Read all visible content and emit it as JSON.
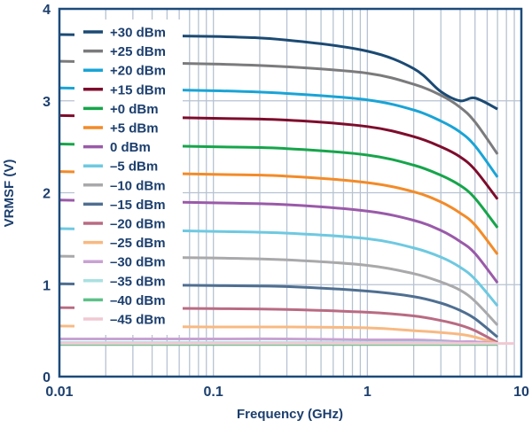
{
  "chart_data": {
    "type": "line",
    "title": "",
    "xlabel": "Frequency (GHz)",
    "ylabel": "VRMSF (V)",
    "xscale": "log",
    "xlim": [
      0.01,
      10
    ],
    "ylim": [
      0,
      4
    ],
    "xticks": [
      "0.01",
      "0.1",
      "1",
      "10"
    ],
    "yticks": [
      "0",
      "1",
      "2",
      "3",
      "4"
    ],
    "grid": true,
    "legend_position": "top-left",
    "x": [
      0.01,
      0.1,
      0.3,
      1,
      2,
      3,
      4,
      5,
      7
    ],
    "series": [
      {
        "name": "+30 dBm",
        "color": "#1b4a73",
        "values": [
          3.72,
          3.7,
          3.66,
          3.54,
          3.35,
          3.1,
          3.0,
          3.03,
          2.91
        ]
      },
      {
        "name": "+25 dBm",
        "color": "#7b7b7d",
        "values": [
          3.43,
          3.4,
          3.37,
          3.3,
          3.18,
          3.06,
          2.93,
          2.77,
          2.42
        ]
      },
      {
        "name": "+20 dBm",
        "color": "#19a4d6",
        "values": [
          3.14,
          3.11,
          3.08,
          3.01,
          2.9,
          2.78,
          2.66,
          2.51,
          2.17
        ]
      },
      {
        "name": "+15 dBm",
        "color": "#7e0c2c",
        "values": [
          2.84,
          2.81,
          2.79,
          2.72,
          2.61,
          2.5,
          2.39,
          2.25,
          1.93
        ]
      },
      {
        "name": "+0 dBm",
        "color": "#16a54b",
        "values": [
          2.53,
          2.5,
          2.48,
          2.41,
          2.3,
          2.19,
          2.08,
          1.94,
          1.62
        ]
      },
      {
        "name": "+5 dBm",
        "color": "#f38b28",
        "values": [
          2.23,
          2.2,
          2.18,
          2.11,
          2.01,
          1.9,
          1.78,
          1.65,
          1.33
        ]
      },
      {
        "name": "0 dBm",
        "color": "#9a5aa9",
        "values": [
          1.92,
          1.89,
          1.87,
          1.8,
          1.7,
          1.59,
          1.47,
          1.34,
          1.02
        ]
      },
      {
        "name": "–5 dBm",
        "color": "#6ec9e1",
        "values": [
          1.61,
          1.58,
          1.56,
          1.5,
          1.4,
          1.3,
          1.19,
          1.06,
          0.77
        ]
      },
      {
        "name": "–10 dBm",
        "color": "#a9a9ab",
        "values": [
          1.31,
          1.29,
          1.27,
          1.21,
          1.12,
          1.03,
          0.94,
          0.82,
          0.56
        ]
      },
      {
        "name": "–15 dBm",
        "color": "#4f6f91",
        "values": [
          1.01,
          0.99,
          0.98,
          0.93,
          0.87,
          0.8,
          0.72,
          0.63,
          0.43
        ]
      },
      {
        "name": "–20 dBm",
        "color": "#b96b83",
        "values": [
          0.75,
          0.74,
          0.73,
          0.7,
          0.66,
          0.61,
          0.56,
          0.5,
          0.37
        ]
      },
      {
        "name": "–25 dBm",
        "color": "#f8b982",
        "values": [
          0.55,
          0.54,
          0.54,
          0.53,
          0.5,
          0.48,
          0.46,
          0.43,
          0.36
        ]
      },
      {
        "name": "–30 dBm",
        "color": "#c9a2d2",
        "values": [
          0.41,
          0.41,
          0.41,
          0.4,
          0.4,
          0.39,
          0.38,
          0.38,
          0.36
        ]
      },
      {
        "name": "–35 dBm",
        "color": "#a9e1e2",
        "values": [
          0.37,
          0.37,
          0.37,
          0.37,
          0.37,
          0.37,
          0.36,
          0.36,
          0.36
        ]
      },
      {
        "name": "–40 dBm",
        "color": "#5dc189",
        "values": [
          0.35,
          0.35,
          0.35,
          0.35,
          0.35,
          0.35,
          0.35,
          0.35,
          0.35
        ]
      },
      {
        "name": "–45 dBm",
        "color": "#f1c9d2",
        "values": [
          0.36,
          0.36,
          0.36,
          0.36,
          0.36,
          0.36,
          0.36,
          0.36,
          0.36
        ]
      }
    ]
  }
}
